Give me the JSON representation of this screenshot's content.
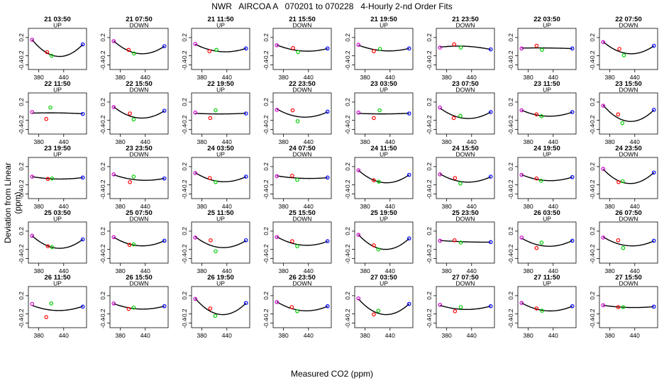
{
  "chart_data": {
    "type": "scatter",
    "title": "NWR   AIRCOA A   070201 to 070228   4-Hourly 2-nd Order Fits",
    "xlabel": "Measured CO2 (ppm)",
    "ylabel": "Deviation from Linear (ppm)",
    "xlim": [
      355,
      495
    ],
    "ylim": [
      -0.5,
      0.4
    ],
    "xticks": [
      380,
      440
    ],
    "yticks": [
      0.2,
      -0.2,
      -0.4
    ],
    "grid": false,
    "colors": {
      "standard_1": "#cc00cc",
      "standard_2": "#ff0000",
      "standard_3": "#00cc00",
      "standard_4": "#0000ff",
      "fit": "#000000"
    },
    "panels": [
      {
        "label": "21 03:50",
        "dir": "UP",
        "pts": [
          [
            364,
            0.15
          ],
          [
            400,
            -0.12
          ],
          [
            411,
            -0.2
          ],
          [
            486,
            0.05
          ]
        ]
      },
      {
        "label": "21 07:50",
        "dir": "DOWN",
        "pts": [
          [
            364,
            0.12
          ],
          [
            400,
            -0.07
          ],
          [
            413,
            -0.15
          ],
          [
            486,
            0.01
          ]
        ]
      },
      {
        "label": "21 11:50",
        "dir": "UP",
        "pts": [
          [
            364,
            0.06
          ],
          [
            398,
            -0.1
          ],
          [
            415,
            -0.07
          ],
          [
            486,
            -0.04
          ]
        ]
      },
      {
        "label": "21 15:50",
        "dir": "DOWN",
        "pts": [
          [
            364,
            0.03
          ],
          [
            403,
            -0.03
          ],
          [
            415,
            -0.12
          ],
          [
            486,
            -0.04
          ]
        ]
      },
      {
        "label": "21 19:50",
        "dir": "UP",
        "pts": [
          [
            364,
            0.04
          ],
          [
            401,
            -0.1
          ],
          [
            416,
            -0.05
          ],
          [
            486,
            -0.04
          ]
        ]
      },
      {
        "label": "21 23:50",
        "dir": "DOWN",
        "pts": [
          [
            364,
            -0.02
          ],
          [
            398,
            0.05
          ],
          [
            414,
            -0.02
          ],
          [
            486,
            -0.06
          ]
        ]
      },
      {
        "label": "22 03:50",
        "dir": "UP",
        "pts": [
          [
            364,
            -0.04
          ],
          [
            400,
            0.02
          ],
          [
            413,
            -0.07
          ],
          [
            486,
            -0.04
          ]
        ]
      },
      {
        "label": "22 07:50",
        "dir": "DOWN",
        "pts": [
          [
            364,
            0.1
          ],
          [
            403,
            -0.05
          ],
          [
            414,
            -0.19
          ],
          [
            486,
            0.02
          ]
        ]
      },
      {
        "label": "22 11:50",
        "dir": "UP",
        "pts": [
          [
            364,
            -0.02
          ],
          [
            398,
            -0.17
          ],
          [
            408,
            0.08
          ],
          [
            486,
            -0.06
          ]
        ]
      },
      {
        "label": "22 15:50",
        "dir": "DOWN",
        "pts": [
          [
            364,
            0.09
          ],
          [
            403,
            -0.05
          ],
          [
            412,
            -0.18
          ],
          [
            486,
            0.01
          ]
        ]
      },
      {
        "label": "22 19:50",
        "dir": "UP",
        "pts": [
          [
            364,
            -0.03
          ],
          [
            400,
            -0.15
          ],
          [
            413,
            0.02
          ],
          [
            486,
            -0.05
          ]
        ]
      },
      {
        "label": "22 23:50",
        "dir": "DOWN",
        "pts": [
          [
            364,
            0.03
          ],
          [
            402,
            0.02
          ],
          [
            414,
            -0.22
          ],
          [
            486,
            -0.01
          ]
        ]
      },
      {
        "label": "23 03:50",
        "dir": "UP",
        "pts": [
          [
            364,
            -0.03
          ],
          [
            401,
            -0.15
          ],
          [
            415,
            0.02
          ],
          [
            486,
            -0.05
          ]
        ]
      },
      {
        "label": "23 07:50",
        "dir": "DOWN",
        "pts": [
          [
            364,
            0.08
          ],
          [
            397,
            -0.15
          ],
          [
            413,
            -0.1
          ],
          [
            486,
            -0.02
          ]
        ]
      },
      {
        "label": "23 11:50",
        "dir": "UP",
        "pts": [
          [
            364,
            0.02
          ],
          [
            400,
            -0.07
          ],
          [
            412,
            -0.11
          ],
          [
            486,
            -0.02
          ]
        ]
      },
      {
        "label": "23 15:50",
        "dir": "DOWN",
        "pts": [
          [
            364,
            0.12
          ],
          [
            400,
            -0.07
          ],
          [
            410,
            -0.26
          ],
          [
            486,
            0.03
          ]
        ]
      },
      {
        "label": "23 19:50",
        "dir": "UP",
        "pts": [
          [
            364,
            -0.02
          ],
          [
            402,
            -0.07
          ],
          [
            412,
            -0.06
          ],
          [
            486,
            -0.04
          ]
        ]
      },
      {
        "label": "23 23:50",
        "dir": "DOWN",
        "pts": [
          [
            364,
            0.03
          ],
          [
            403,
            -0.14
          ],
          [
            412,
            -0.02
          ],
          [
            486,
            -0.06
          ]
        ]
      },
      {
        "label": "24 03:50",
        "dir": "UP",
        "pts": [
          [
            364,
            0.06
          ],
          [
            399,
            -0.05
          ],
          [
            413,
            -0.14
          ],
          [
            486,
            -0.02
          ]
        ]
      },
      {
        "label": "24 07:50",
        "dir": "DOWN",
        "pts": [
          [
            364,
            -0.01
          ],
          [
            401,
            0.0
          ],
          [
            413,
            -0.09
          ],
          [
            486,
            -0.04
          ]
        ]
      },
      {
        "label": "24 11:50",
        "dir": "UP",
        "pts": [
          [
            364,
            0.12
          ],
          [
            401,
            -0.1
          ],
          [
            413,
            -0.13
          ],
          [
            486,
            0.02
          ]
        ]
      },
      {
        "label": "24 15:50",
        "dir": "DOWN",
        "pts": [
          [
            364,
            0.03
          ],
          [
            400,
            -0.05
          ],
          [
            413,
            -0.17
          ],
          [
            486,
            -0.02
          ]
        ]
      },
      {
        "label": "24 19:50",
        "dir": "UP",
        "pts": [
          [
            364,
            0.02
          ],
          [
            400,
            -0.06
          ],
          [
            411,
            -0.11
          ],
          [
            486,
            -0.03
          ]
        ]
      },
      {
        "label": "24 23:50",
        "dir": "DOWN",
        "pts": [
          [
            364,
            0.15
          ],
          [
            401,
            -0.14
          ],
          [
            411,
            -0.12
          ],
          [
            486,
            0.07
          ]
        ]
      },
      {
        "label": "25 03:50",
        "dir": "UP",
        "pts": [
          [
            364,
            0.1
          ],
          [
            402,
            -0.13
          ],
          [
            412,
            -0.15
          ],
          [
            486,
            0.02
          ]
        ]
      },
      {
        "label": "25 07:50",
        "dir": "DOWN",
        "pts": [
          [
            364,
            0.07
          ],
          [
            402,
            -0.1
          ],
          [
            412,
            -0.09
          ],
          [
            486,
            -0.01
          ]
        ]
      },
      {
        "label": "25 11:50",
        "dir": "UP",
        "pts": [
          [
            364,
            0.06
          ],
          [
            401,
            0.0
          ],
          [
            413,
            -0.24
          ],
          [
            486,
            0.0
          ]
        ]
      },
      {
        "label": "25 15:50",
        "dir": "DOWN",
        "pts": [
          [
            364,
            0.07
          ],
          [
            401,
            -0.02
          ],
          [
            413,
            -0.13
          ],
          [
            486,
            -0.02
          ]
        ]
      },
      {
        "label": "25 19:50",
        "dir": "UP",
        "pts": [
          [
            364,
            0.12
          ],
          [
            401,
            -0.11
          ],
          [
            412,
            -0.2
          ],
          [
            486,
            0.04
          ]
        ]
      },
      {
        "label": "25 23:50",
        "dir": "DOWN",
        "pts": [
          [
            364,
            -0.01
          ],
          [
            399,
            0.0
          ],
          [
            414,
            -0.05
          ],
          [
            486,
            -0.04
          ]
        ]
      },
      {
        "label": "26 03:50",
        "dir": "UP",
        "pts": [
          [
            364,
            0.06
          ],
          [
            400,
            -0.17
          ],
          [
            412,
            -0.05
          ],
          [
            486,
            -0.01
          ]
        ]
      },
      {
        "label": "26 07:50",
        "dir": "DOWN",
        "pts": [
          [
            364,
            0.06
          ],
          [
            400,
            0.0
          ],
          [
            412,
            -0.17
          ],
          [
            486,
            -0.01
          ]
        ]
      },
      {
        "label": "26 11:50",
        "dir": "UP",
        "pts": [
          [
            364,
            0.02
          ],
          [
            398,
            -0.27
          ],
          [
            410,
            0.03
          ],
          [
            486,
            -0.04
          ]
        ]
      },
      {
        "label": "26 15:50",
        "dir": "DOWN",
        "pts": [
          [
            364,
            0.03
          ],
          [
            400,
            -0.09
          ],
          [
            412,
            -0.06
          ],
          [
            486,
            -0.03
          ]
        ]
      },
      {
        "label": "26 19:50",
        "dir": "UP",
        "pts": [
          [
            364,
            0.13
          ],
          [
            400,
            -0.08
          ],
          [
            412,
            -0.24
          ],
          [
            486,
            0.04
          ]
        ]
      },
      {
        "label": "26 23:50",
        "dir": "DOWN",
        "pts": [
          [
            364,
            0.06
          ],
          [
            400,
            -0.05
          ],
          [
            413,
            -0.14
          ],
          [
            486,
            -0.03
          ]
        ]
      },
      {
        "label": "27 03:50",
        "dir": "UP",
        "pts": [
          [
            364,
            0.14
          ],
          [
            401,
            -0.21
          ],
          [
            412,
            -0.13
          ],
          [
            486,
            0.02
          ]
        ]
      },
      {
        "label": "27 07:50",
        "dir": "DOWN",
        "pts": [
          [
            364,
            0.0
          ],
          [
            400,
            -0.14
          ],
          [
            414,
            -0.05
          ],
          [
            486,
            -0.03
          ]
        ]
      },
      {
        "label": "27 11:50",
        "dir": "UP",
        "pts": [
          [
            364,
            0.04
          ],
          [
            400,
            -0.08
          ],
          [
            413,
            -0.13
          ],
          [
            486,
            -0.03
          ]
        ]
      },
      {
        "label": "27 15:50",
        "dir": "DOWN",
        "pts": [
          [
            364,
            -0.01
          ],
          [
            400,
            -0.05
          ],
          [
            412,
            -0.05
          ],
          [
            486,
            -0.04
          ]
        ]
      }
    ]
  }
}
